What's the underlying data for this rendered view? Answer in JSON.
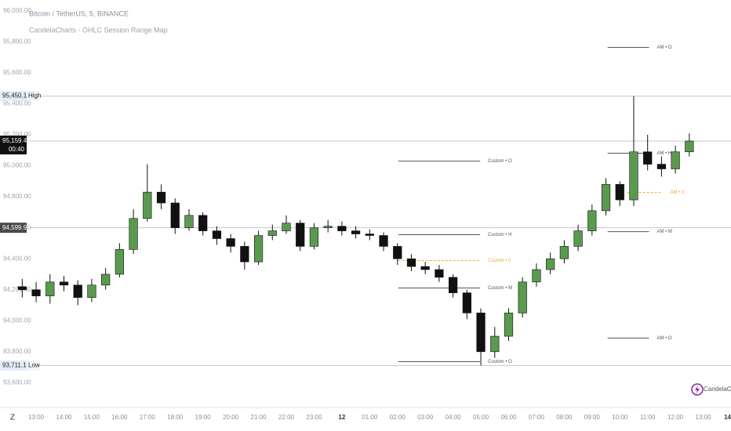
{
  "chart_data": {
    "type": "candlestick",
    "title": "Bitcoin / TetherUS, 5, BINANCE",
    "subtitle": "CandelaCharts - OHLC Session Range Map",
    "watermark": "CandelaCharts",
    "up_color": "#5a9a4e",
    "down_color": "#111111",
    "wick_color": "#111111",
    "x": [
      -0.5,
      0,
      0.5,
      1,
      1.5,
      2,
      2.5,
      3,
      3.5,
      4,
      4.5,
      5,
      5.5,
      6,
      6.5,
      7,
      7.5,
      8,
      8.5,
      9,
      9.5,
      10,
      10.5,
      11,
      11.5,
      12,
      12.5,
      13,
      13.5,
      14,
      14.5,
      15,
      15.5,
      16,
      16.5,
      17,
      17.5,
      18,
      18.5,
      19,
      19.5,
      20,
      20.5,
      21,
      21.5,
      22,
      22.5,
      23,
      23.5
    ],
    "open": [
      94220,
      94200,
      94160,
      94250,
      94230,
      94150,
      94230,
      94300,
      94460,
      94660,
      94830,
      94760,
      94600,
      94680,
      94580,
      94530,
      94480,
      94380,
      94550,
      94580,
      94630,
      94480,
      94600,
      94610,
      94580,
      94560,
      94550,
      94480,
      94400,
      94350,
      94330,
      94280,
      94180,
      94050,
      93800,
      93900,
      94050,
      94250,
      94330,
      94400,
      94480,
      94580,
      94710,
      94880,
      94780,
      95090,
      95010,
      94980,
      95090
    ],
    "high": [
      94270,
      94250,
      94300,
      94290,
      94260,
      94270,
      94340,
      94500,
      94720,
      95010,
      94880,
      94790,
      94720,
      94700,
      94610,
      94560,
      94510,
      94580,
      94620,
      94680,
      94650,
      94630,
      94650,
      94640,
      94610,
      94590,
      94570,
      94500,
      94430,
      94380,
      94360,
      94300,
      94200,
      94080,
      93960,
      94080,
      94280,
      94370,
      94440,
      94520,
      94620,
      94750,
      94920,
      94900,
      95450.1,
      95200,
      95060,
      95130,
      95210
    ],
    "low": [
      94150,
      94120,
      94110,
      94190,
      94100,
      94120,
      94200,
      94280,
      94430,
      94640,
      94720,
      94560,
      94580,
      94550,
      94490,
      94440,
      94330,
      94360,
      94520,
      94560,
      94450,
      94460,
      94570,
      94550,
      94530,
      94520,
      94450,
      94360,
      94320,
      94300,
      94250,
      94150,
      94010,
      93711.19,
      93760,
      93870,
      94020,
      94220,
      94300,
      94370,
      94450,
      94550,
      94680,
      94740,
      94740,
      94970,
      94930,
      94950,
      95060
    ],
    "close": [
      94200,
      94160,
      94250,
      94230,
      94150,
      94230,
      94300,
      94460,
      94660,
      94830,
      94760,
      94600,
      94680,
      94580,
      94530,
      94480,
      94380,
      94550,
      94580,
      94630,
      94480,
      94600,
      94610,
      94580,
      94560,
      94550,
      94480,
      94400,
      94350,
      94330,
      94280,
      94180,
      94050,
      93800,
      93900,
      94050,
      94250,
      94330,
      94400,
      94480,
      94580,
      94710,
      94880,
      94780,
      95090,
      95010,
      94980,
      95090,
      95159.49
    ],
    "xlim": [
      -1.3,
      25
    ],
    "xticks": [
      {
        "value": 0,
        "label": "13:00"
      },
      {
        "value": 1,
        "label": "14:00"
      },
      {
        "value": 2,
        "label": "15:00"
      },
      {
        "value": 3,
        "label": "16:00"
      },
      {
        "value": 4,
        "label": "17:00"
      },
      {
        "value": 5,
        "label": "18:00"
      },
      {
        "value": 6,
        "label": "19:00"
      },
      {
        "value": 7,
        "label": "20:00"
      },
      {
        "value": 8,
        "label": "21:00"
      },
      {
        "value": 9,
        "label": "22:00"
      },
      {
        "value": 10,
        "label": "23:00"
      },
      {
        "value": 11,
        "label": "12"
      },
      {
        "value": 12,
        "label": "01:00"
      },
      {
        "value": 13,
        "label": "02:00"
      },
      {
        "value": 14,
        "label": "03:00"
      },
      {
        "value": 15,
        "label": "04:00"
      },
      {
        "value": 16,
        "label": "05:00"
      },
      {
        "value": 17,
        "label": "06:00"
      },
      {
        "value": 18,
        "label": "07:00"
      },
      {
        "value": 19,
        "label": "08:00"
      },
      {
        "value": 20,
        "label": "09:00"
      },
      {
        "value": 21,
        "label": "10:00"
      },
      {
        "value": 22,
        "label": "11:00"
      },
      {
        "value": 23,
        "label": "12:00"
      },
      {
        "value": 24,
        "label": "13:00"
      },
      {
        "value": 25,
        "label": "14"
      }
    ],
    "ylim": [
      93440,
      96070
    ],
    "yticks": [
      {
        "value": 96000,
        "label": "96,000.00"
      },
      {
        "value": 95800,
        "label": "95,800.00"
      },
      {
        "value": 95600,
        "label": "95,600.00"
      },
      {
        "value": 95400,
        "label": "95,400.00"
      },
      {
        "value": 95200,
        "label": "95,200.00"
      },
      {
        "value": 95000,
        "label": "95,000.00"
      },
      {
        "value": 94800,
        "label": "94,800.00"
      },
      {
        "value": 94600,
        "label": "94,600.00"
      },
      {
        "value": 94400,
        "label": "94,400.00"
      },
      {
        "value": 94200,
        "label": "94,200.00"
      },
      {
        "value": 94000,
        "label": "94,000.00"
      },
      {
        "value": 93800,
        "label": "93,800.00"
      },
      {
        "value": 93600,
        "label": "93,600.00"
      }
    ],
    "price_markers": [
      {
        "value": 95450.1,
        "label": "95,450.10",
        "tag": "High",
        "style": "light"
      },
      {
        "value": 95159.49,
        "label": "95,159.49",
        "tag": "00:40",
        "style": "dark"
      },
      {
        "value": 94599.99,
        "label": "94,599.99",
        "style": "gray"
      },
      {
        "value": 93711.19,
        "label": "93,711.19",
        "tag": "Low",
        "style": "light"
      }
    ],
    "levels": [
      {
        "label": "Custom • O",
        "value": 95030,
        "x": [
          13.03,
          15.97
        ],
        "color": "#555555",
        "dashed": false
      },
      {
        "label": "Custom • H",
        "value": 94555,
        "x": [
          13.03,
          15.97
        ],
        "color": "#555555",
        "dashed": false
      },
      {
        "label": "Custom • 0",
        "value": 94388,
        "x": [
          13.03,
          15.97
        ],
        "color": "#f5a623",
        "dashed": true
      },
      {
        "label": "Custom • M",
        "value": 94211,
        "x": [
          13.03,
          15.97
        ],
        "color": "#555555",
        "dashed": false
      },
      {
        "label": "Custom • O",
        "value": 93736,
        "x": [
          13.03,
          15.97
        ],
        "color": "#555555",
        "dashed": false
      },
      {
        "label": "AM • O",
        "value": 95764,
        "x": [
          20.56,
          22.05
        ],
        "color": "#555555",
        "dashed": false
      },
      {
        "label": "AM • H",
        "value": 95081,
        "x": [
          20.56,
          22.05
        ],
        "color": "#555555",
        "dashed": false
      },
      {
        "label": "AM • 0",
        "value": 94828,
        "x": [
          21.26,
          22.53
        ],
        "color": "#f5a623",
        "dashed": true
      },
      {
        "label": "AM • M",
        "value": 94575,
        "x": [
          20.56,
          22.05
        ],
        "color": "#555555",
        "dashed": false
      },
      {
        "label": "AM • O",
        "value": 93888,
        "x": [
          20.56,
          22.05
        ],
        "color": "#555555",
        "dashed": false
      }
    ]
  }
}
